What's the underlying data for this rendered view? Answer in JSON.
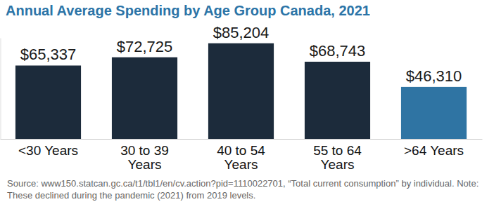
{
  "chart_data": {
    "type": "bar",
    "title": "Annual Average Spending by Age Group Canada, 2021",
    "categories": [
      "<30 Years",
      "30 to 39 Years",
      "40 to 54 Years",
      "55 to 64 Years",
      ">64 Years"
    ],
    "values": [
      65337,
      72725,
      85204,
      68743,
      46310
    ],
    "value_labels": [
      "$65,337",
      "$72,725",
      "$85,204",
      "$68,743",
      "$46,310"
    ],
    "colors": [
      "#1c2b3b",
      "#1c2b3b",
      "#1c2b3b",
      "#1c2b3b",
      "#2f74a3"
    ],
    "ylim": [
      0,
      90000
    ],
    "yticks": [],
    "grid": false,
    "data_labels": true,
    "tick_labels": "x",
    "source": "Source: www150.statcan.gc.ca/t1/tbl1/en/cv.action?pid=1110022701, “Total current consumption” by individual. Note: These declined during the pandemic (2021) from 2019 levels."
  }
}
